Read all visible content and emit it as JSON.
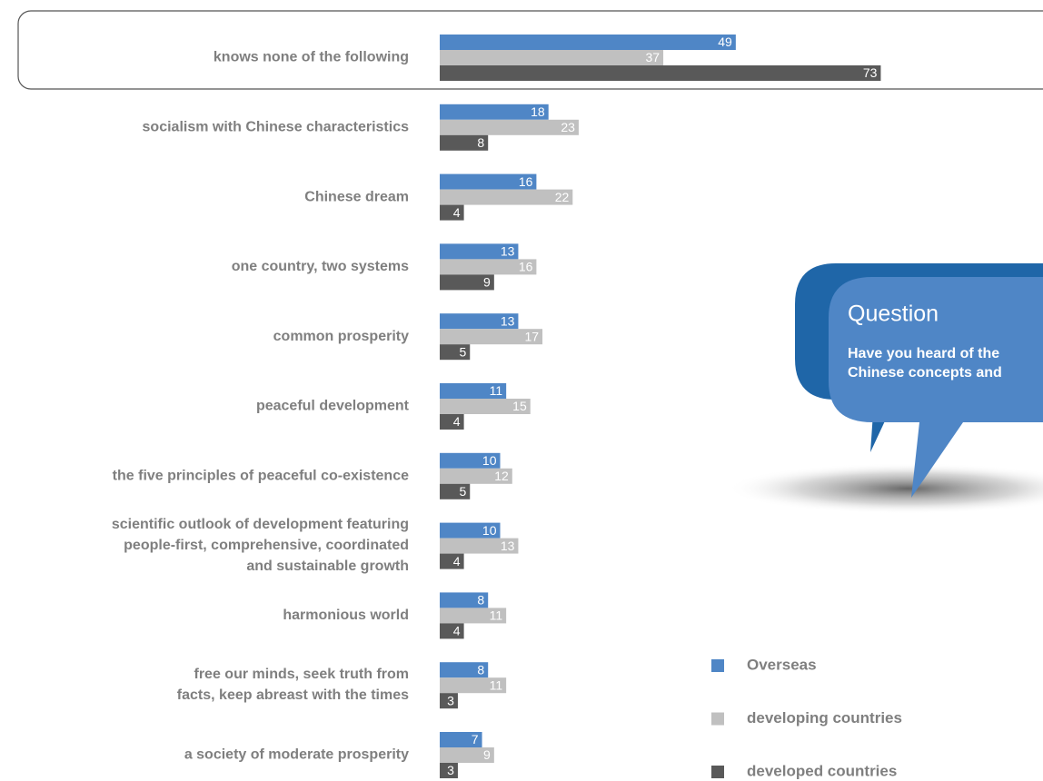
{
  "chart_data": {
    "type": "bar",
    "orientation": "horizontal",
    "categories": [
      "knows none of the following",
      "socialism with Chinese characteristics",
      "Chinese dream",
      "one country, two systems",
      "common prosperity",
      "peaceful development",
      "the five principles of peaceful co-existence",
      "scientific outlook of development featuring\npeople-first, comprehensive, coordinated\nand sustainable growth",
      "harmonious world",
      "free our minds, seek truth from\nfacts, keep abreast with the times",
      "a society of moderate prosperity"
    ],
    "series": [
      {
        "name": "Overseas",
        "color": "#4f86c6",
        "values": [
          49,
          18,
          16,
          13,
          13,
          11,
          10,
          10,
          8,
          8,
          7
        ]
      },
      {
        "name": "developing countries",
        "color": "#c0c0c0",
        "values": [
          37,
          23,
          22,
          16,
          17,
          15,
          12,
          13,
          11,
          11,
          9
        ]
      },
      {
        "name": "developed countries",
        "color": "#595959",
        "values": [
          73,
          8,
          4,
          9,
          5,
          4,
          5,
          4,
          4,
          3,
          3
        ]
      }
    ],
    "annotation": {
      "title": "Question",
      "lines": [
        "Have you heard of the",
        "Chinese concepts and"
      ]
    },
    "legend": "bottom-right"
  }
}
